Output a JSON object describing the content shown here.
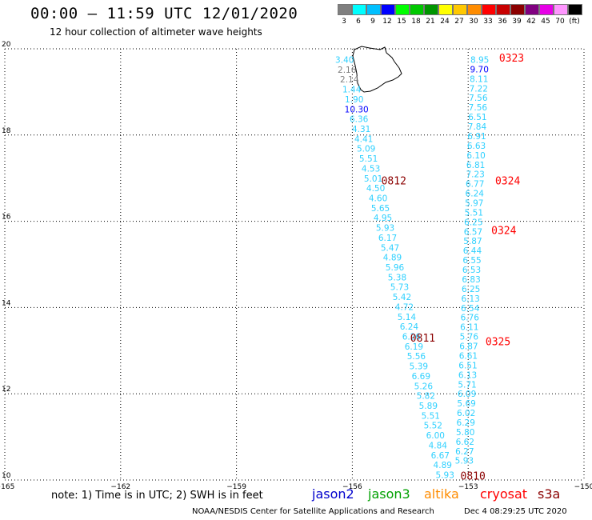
{
  "header": {
    "title": "00:00 – 11:59 UTC 12/01/2020",
    "subtitle": "12 hour collection of altimeter wave heights"
  },
  "colorbar": {
    "colors": [
      "#7f7f7f",
      "#00ffff",
      "#00c0ff",
      "#0000ff",
      "#00ff00",
      "#00c800",
      "#009600",
      "#ffff00",
      "#ffc800",
      "#ff8c00",
      "#ff0000",
      "#c80000",
      "#8b0000",
      "#800080",
      "#e600e6",
      "#ff96ff",
      "#000000"
    ],
    "labels": [
      "3",
      "6",
      "9",
      "12",
      "15",
      "18",
      "21",
      "24",
      "27",
      "30",
      "33",
      "36",
      "39",
      "42",
      "45",
      "70",
      "(ft)"
    ]
  },
  "map": {
    "lon_range": [
      -165,
      -150
    ],
    "lat_range": [
      10,
      20
    ],
    "lon_ticks": [
      "−165",
      "−162",
      "−159",
      "−156",
      "−153",
      "−150"
    ],
    "lat_ticks": [
      "20",
      "18",
      "16",
      "14",
      "12",
      "10"
    ],
    "coast_label": "Hawaii (Big Island)"
  },
  "tracks": {
    "track_a": {
      "lon_start": -156.2,
      "lat_start": 19.75,
      "lon_end": -153.6,
      "lat_end": 10.12,
      "values": [
        "3.40",
        "2.16",
        "2.14",
        "1.44",
        "1.90",
        "10.30",
        "6.36",
        "4.31",
        "4.41",
        "5.09",
        "5.51",
        "4.53",
        "5.01",
        "4.50",
        "4.60",
        "5.65",
        "4.95",
        "5.93",
        "6.17",
        "5.47",
        "4.89",
        "5.96",
        "5.38",
        "5.73",
        "5.42",
        "4.72",
        "5.14",
        "6.24",
        "6.26",
        "6.19",
        "5.56",
        "5.39",
        "6.69",
        "5.26",
        "5.82",
        "5.89",
        "5.51",
        "5.52",
        "6.00",
        "4.84",
        "6.67",
        "4.89",
        "5.93"
      ],
      "colors": [
        "#2fd0ff",
        "#7f7f7f",
        "#7f7f7f",
        "#2fd0ff",
        "#2fd0ff",
        "#0000ff",
        "#2fd0ff",
        "#2fd0ff",
        "#2fd0ff",
        "#2fd0ff",
        "#2fd0ff",
        "#2fd0ff",
        "#2fd0ff",
        "#2fd0ff",
        "#2fd0ff",
        "#2fd0ff",
        "#2fd0ff",
        "#2fd0ff",
        "#2fd0ff",
        "#2fd0ff",
        "#2fd0ff",
        "#2fd0ff",
        "#2fd0ff",
        "#2fd0ff",
        "#2fd0ff",
        "#2fd0ff",
        "#2fd0ff",
        "#2fd0ff",
        "#2fd0ff",
        "#2fd0ff",
        "#2fd0ff",
        "#2fd0ff",
        "#2fd0ff",
        "#2fd0ff",
        "#2fd0ff",
        "#2fd0ff",
        "#2fd0ff",
        "#2fd0ff",
        "#2fd0ff",
        "#2fd0ff",
        "#2fd0ff",
        "#2fd0ff",
        "#2fd0ff"
      ]
    },
    "track_b": {
      "lon_start": -152.7,
      "lat_start": 19.75,
      "lon_end": -153.1,
      "lat_end": 10.45,
      "values": [
        "8.95",
        "9.70",
        "8.11",
        "7.22",
        "7.56",
        "7.56",
        "6.51",
        "7.84",
        "6.91",
        "6.63",
        "6.10",
        "6.81",
        "7.23",
        "6.77",
        "6.24",
        "5.97",
        "5.51",
        "6.25",
        "6.57",
        "5.87",
        "6.44",
        "6.55",
        "6.53",
        "6.83",
        "6.25",
        "6.13",
        "6.54",
        "6.76",
        "6.11",
        "5.76",
        "6.87",
        "6.61",
        "6.51",
        "6.13",
        "5.71",
        "6.09",
        "5.69",
        "6.02",
        "6.29",
        "5.80",
        "6.62",
        "6.27",
        "5.93"
      ],
      "colors": [
        "#2fd0ff",
        "#0000ff",
        "#2fd0ff",
        "#2fd0ff",
        "#2fd0ff",
        "#2fd0ff",
        "#2fd0ff",
        "#2fd0ff",
        "#2fd0ff",
        "#2fd0ff",
        "#2fd0ff",
        "#2fd0ff",
        "#2fd0ff",
        "#2fd0ff",
        "#2fd0ff",
        "#2fd0ff",
        "#2fd0ff",
        "#2fd0ff",
        "#2fd0ff",
        "#2fd0ff",
        "#2fd0ff",
        "#2fd0ff",
        "#2fd0ff",
        "#2fd0ff",
        "#2fd0ff",
        "#2fd0ff",
        "#2fd0ff",
        "#2fd0ff",
        "#2fd0ff",
        "#2fd0ff",
        "#2fd0ff",
        "#2fd0ff",
        "#2fd0ff",
        "#2fd0ff",
        "#2fd0ff",
        "#2fd0ff",
        "#2fd0ff",
        "#2fd0ff",
        "#2fd0ff",
        "#2fd0ff",
        "#2fd0ff",
        "#2fd0ff",
        "#2fd0ff"
      ]
    }
  },
  "pass_times": [
    {
      "text": "0323",
      "color": "#ff0000",
      "lon": -152.2,
      "lat": 19.8
    },
    {
      "text": "0812",
      "color": "#8b0000",
      "lon": -155.25,
      "lat": 16.95
    },
    {
      "text": "0324",
      "color": "#ff0000",
      "lon": -152.3,
      "lat": 16.95
    },
    {
      "text": "0324",
      "color": "#ff0000",
      "lon": -152.4,
      "lat": 15.8
    },
    {
      "text": "0811",
      "color": "#8b0000",
      "lon": -154.5,
      "lat": 13.3
    },
    {
      "text": "0325",
      "color": "#ff0000",
      "lon": -152.55,
      "lat": 13.22
    },
    {
      "text": "0810",
      "color": "#8b0000",
      "lon": -153.2,
      "lat": 10.1
    }
  ],
  "footer": {
    "note": "note:  1) Time is in UTC;  2) SWH is in feet",
    "satellites": [
      {
        "name": "jason2",
        "color": "#0000cd"
      },
      {
        "name": "jason3",
        "color": "#00a000"
      },
      {
        "name": "altika",
        "color": "#ff8c00"
      },
      {
        "name": "cryosat",
        "color": "#ff0000"
      },
      {
        "name": "s3a",
        "color": "#8b0000"
      }
    ],
    "credit": "NOAA/NESDIS Center for Satellite Applications and Research",
    "timestamp": "Dec  4 08:29:25 UTC 2020"
  }
}
